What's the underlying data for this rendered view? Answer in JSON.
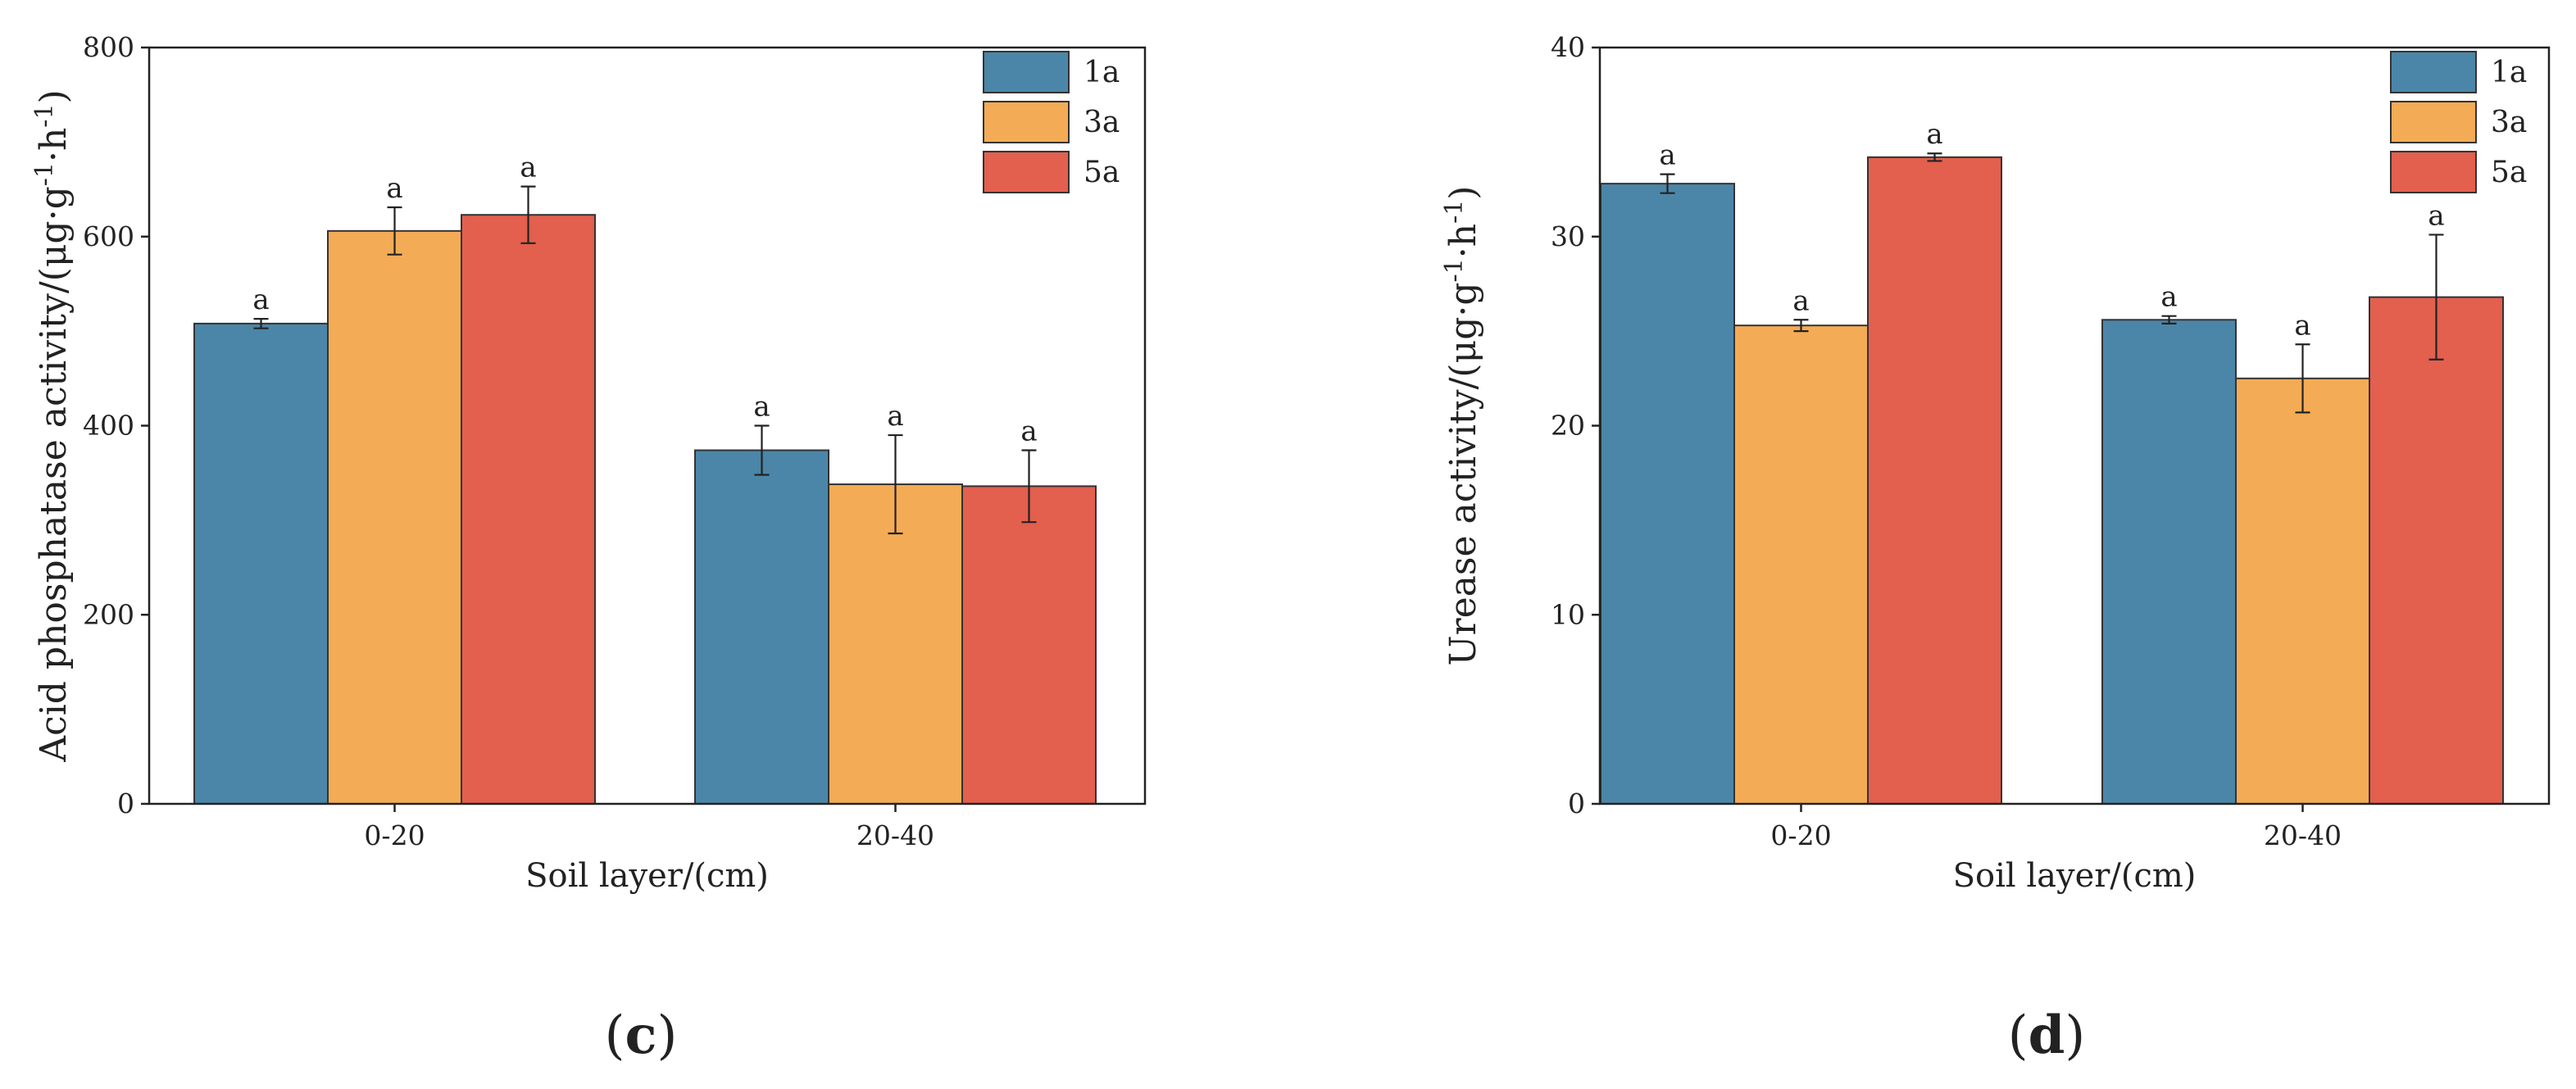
{
  "chart_data": [
    {
      "type": "bar",
      "panel": "(c)",
      "panel_parts": {
        "open": "(",
        "letter": "c",
        "close": ")"
      },
      "ylabel_parts": {
        "base": "Acid phosphatase activity/(μg·g",
        "sup1": "-1",
        "mid": "·h",
        "sup2": "-1",
        "end": ")"
      },
      "xlabel": "Soil layer/(cm)",
      "categories": [
        "0-20",
        "20-40"
      ],
      "ylim": [
        0,
        800
      ],
      "yticks": [
        0,
        200,
        400,
        600,
        800
      ],
      "series": [
        {
          "name": "1a",
          "color": "#4b86a8",
          "values": [
            508,
            374
          ],
          "errors": [
            5,
            26
          ],
          "sig": [
            "a",
            "a"
          ]
        },
        {
          "name": "3a",
          "color": "#f4ab55",
          "values": [
            606,
            338
          ],
          "errors": [
            25,
            52
          ],
          "sig": [
            "a",
            "a"
          ]
        },
        {
          "name": "5a",
          "color": "#e35f4e",
          "values": [
            623,
            336
          ],
          "errors": [
            30,
            38
          ],
          "sig": [
            "a",
            "a"
          ]
        }
      ]
    },
    {
      "type": "bar",
      "panel": "(d)",
      "panel_parts": {
        "open": "(",
        "letter": "d",
        "close": ")"
      },
      "ylabel_parts": {
        "base": "Urease activity/(μg·g",
        "sup1": "-1",
        "mid": "·h",
        "sup2": "-1",
        "end": ")"
      },
      "xlabel": "Soil layer/(cm)",
      "categories": [
        "0-20",
        "20-40"
      ],
      "ylim": [
        0,
        40
      ],
      "yticks": [
        0,
        10,
        20,
        30,
        40
      ],
      "series": [
        {
          "name": "1a",
          "color": "#4b86a8",
          "values": [
            32.8,
            25.6
          ],
          "errors": [
            0.5,
            0.2
          ],
          "sig": [
            "a",
            "a"
          ]
        },
        {
          "name": "3a",
          "color": "#f4ab55",
          "values": [
            25.3,
            22.5
          ],
          "errors": [
            0.3,
            1.8
          ],
          "sig": [
            "a",
            "a"
          ]
        },
        {
          "name": "5a",
          "color": "#e35f4e",
          "values": [
            34.2,
            26.8
          ],
          "errors": [
            0.2,
            3.3
          ],
          "sig": [
            "a",
            "a"
          ]
        }
      ]
    }
  ]
}
